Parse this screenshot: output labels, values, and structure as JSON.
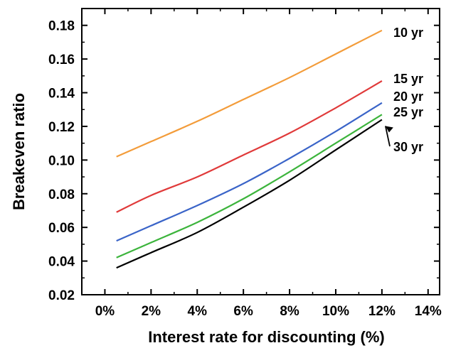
{
  "chart_data": {
    "type": "line",
    "xlabel": "Interest rate for discounting (%)",
    "ylabel": "Breakeven ratio",
    "xlim": [
      -0.01,
      0.145
    ],
    "ylim": [
      0.02,
      0.19
    ],
    "x_ticks": [
      0,
      0.02,
      0.04,
      0.06,
      0.08,
      0.1,
      0.12,
      0.14
    ],
    "x_tick_labels": [
      "0%",
      "2%",
      "4%",
      "6%",
      "8%",
      "10%",
      "12%",
      "14%"
    ],
    "y_ticks": [
      0.02,
      0.04,
      0.06,
      0.08,
      0.1,
      0.12,
      0.14,
      0.16,
      0.18
    ],
    "y_tick_labels": [
      "0.02",
      "0.04",
      "0.06",
      "0.08",
      "0.10",
      "0.12",
      "0.14",
      "0.16",
      "0.18"
    ],
    "x": [
      0.005,
      0.02,
      0.04,
      0.06,
      0.08,
      0.1,
      0.12
    ],
    "grid": false,
    "legend": "inline labels at line ends",
    "series": [
      {
        "name": "10 yr",
        "color": "#f39c3a",
        "values": [
          0.102,
          0.111,
          0.123,
          0.136,
          0.149,
          0.163,
          0.177
        ]
      },
      {
        "name": "15 yr",
        "color": "#e03a3a",
        "values": [
          0.069,
          0.079,
          0.09,
          0.103,
          0.116,
          0.131,
          0.147
        ]
      },
      {
        "name": "20 yr",
        "color": "#3a64c8",
        "values": [
          0.052,
          0.061,
          0.073,
          0.086,
          0.101,
          0.117,
          0.134
        ]
      },
      {
        "name": "25 yr",
        "color": "#3cb43c",
        "values": [
          0.042,
          0.051,
          0.063,
          0.077,
          0.093,
          0.11,
          0.127
        ]
      },
      {
        "name": "30 yr",
        "color": "#000000",
        "values": [
          0.036,
          0.045,
          0.057,
          0.072,
          0.088,
          0.106,
          0.124
        ]
      }
    ]
  }
}
